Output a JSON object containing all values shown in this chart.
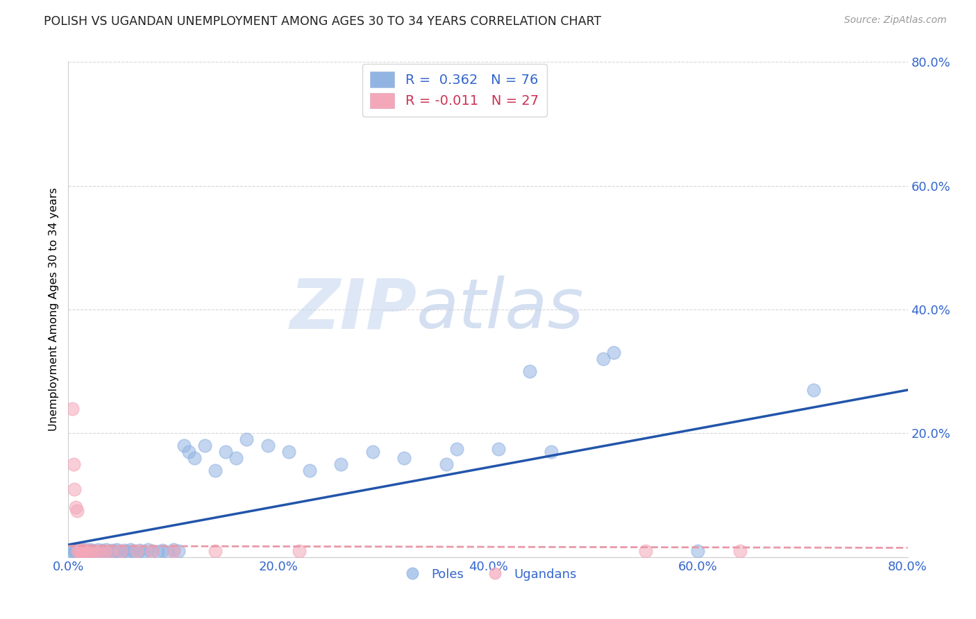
{
  "title": "POLISH VS UGANDAN UNEMPLOYMENT AMONG AGES 30 TO 34 YEARS CORRELATION CHART",
  "source": "Source: ZipAtlas.com",
  "ylabel": "Unemployment Among Ages 30 to 34 years",
  "xlim": [
    0.0,
    0.8
  ],
  "ylim": [
    0.0,
    0.8
  ],
  "xticks": [
    0.0,
    0.2,
    0.4,
    0.6,
    0.8
  ],
  "yticks": [
    0.0,
    0.2,
    0.4,
    0.6,
    0.8
  ],
  "xticklabels": [
    "0.0%",
    "20.0%",
    "40.0%",
    "60.0%",
    "80.0%"
  ],
  "yticklabels": [
    "",
    "20.0%",
    "40.0%",
    "60.0%",
    "80.0%"
  ],
  "blue_R": 0.362,
  "blue_N": 76,
  "pink_R": -0.011,
  "pink_N": 27,
  "blue_color": "#92B4E3",
  "pink_color": "#F4A7B9",
  "trendline_blue_color": "#2255AA",
  "trendline_pink_color": "#E899A8",
  "watermark_zip": "ZIP",
  "watermark_atlas": "atlas",
  "legend_blue_label": "Poles",
  "legend_pink_label": "Ugandans",
  "blue_x": [
    0.004,
    0.005,
    0.006,
    0.007,
    0.008,
    0.009,
    0.01,
    0.01,
    0.011,
    0.012,
    0.012,
    0.013,
    0.013,
    0.014,
    0.015,
    0.015,
    0.016,
    0.017,
    0.017,
    0.018,
    0.019,
    0.02,
    0.021,
    0.022,
    0.023,
    0.025,
    0.026,
    0.028,
    0.03,
    0.032,
    0.034,
    0.036,
    0.038,
    0.04,
    0.042,
    0.044,
    0.046,
    0.048,
    0.05,
    0.053,
    0.056,
    0.059,
    0.062,
    0.065,
    0.068,
    0.072,
    0.076,
    0.08,
    0.085,
    0.09,
    0.095,
    0.1,
    0.105,
    0.11,
    0.115,
    0.12,
    0.13,
    0.14,
    0.15,
    0.16,
    0.17,
    0.19,
    0.21,
    0.23,
    0.26,
    0.29,
    0.32,
    0.36,
    0.41,
    0.46,
    0.52,
    0.37,
    0.44,
    0.51,
    0.6,
    0.71
  ],
  "blue_y": [
    0.01,
    0.012,
    0.008,
    0.01,
    0.012,
    0.009,
    0.011,
    0.008,
    0.013,
    0.01,
    0.009,
    0.012,
    0.008,
    0.01,
    0.011,
    0.009,
    0.012,
    0.008,
    0.011,
    0.01,
    0.009,
    0.012,
    0.008,
    0.01,
    0.011,
    0.009,
    0.01,
    0.012,
    0.008,
    0.011,
    0.009,
    0.012,
    0.01,
    0.008,
    0.011,
    0.009,
    0.012,
    0.01,
    0.008,
    0.011,
    0.009,
    0.012,
    0.01,
    0.008,
    0.011,
    0.009,
    0.012,
    0.01,
    0.009,
    0.011,
    0.008,
    0.012,
    0.01,
    0.18,
    0.17,
    0.16,
    0.18,
    0.14,
    0.17,
    0.16,
    0.19,
    0.18,
    0.17,
    0.14,
    0.15,
    0.17,
    0.16,
    0.15,
    0.175,
    0.17,
    0.33,
    0.175,
    0.3,
    0.32,
    0.01,
    0.27
  ],
  "pink_x": [
    0.004,
    0.005,
    0.006,
    0.007,
    0.008,
    0.009,
    0.01,
    0.011,
    0.012,
    0.013,
    0.014,
    0.016,
    0.018,
    0.02,
    0.023,
    0.026,
    0.03,
    0.035,
    0.04,
    0.05,
    0.065,
    0.08,
    0.1,
    0.14,
    0.22,
    0.55,
    0.64
  ],
  "pink_y": [
    0.24,
    0.15,
    0.11,
    0.08,
    0.075,
    0.01,
    0.01,
    0.01,
    0.01,
    0.01,
    0.012,
    0.01,
    0.01,
    0.01,
    0.01,
    0.01,
    0.01,
    0.01,
    0.01,
    0.01,
    0.01,
    0.01,
    0.01,
    0.01,
    0.01,
    0.01,
    0.01
  ],
  "blue_trend_x": [
    0.0,
    0.8
  ],
  "blue_trend_y": [
    0.02,
    0.27
  ],
  "pink_trend_x": [
    0.0,
    0.8
  ],
  "pink_trend_y": [
    0.018,
    0.015
  ]
}
